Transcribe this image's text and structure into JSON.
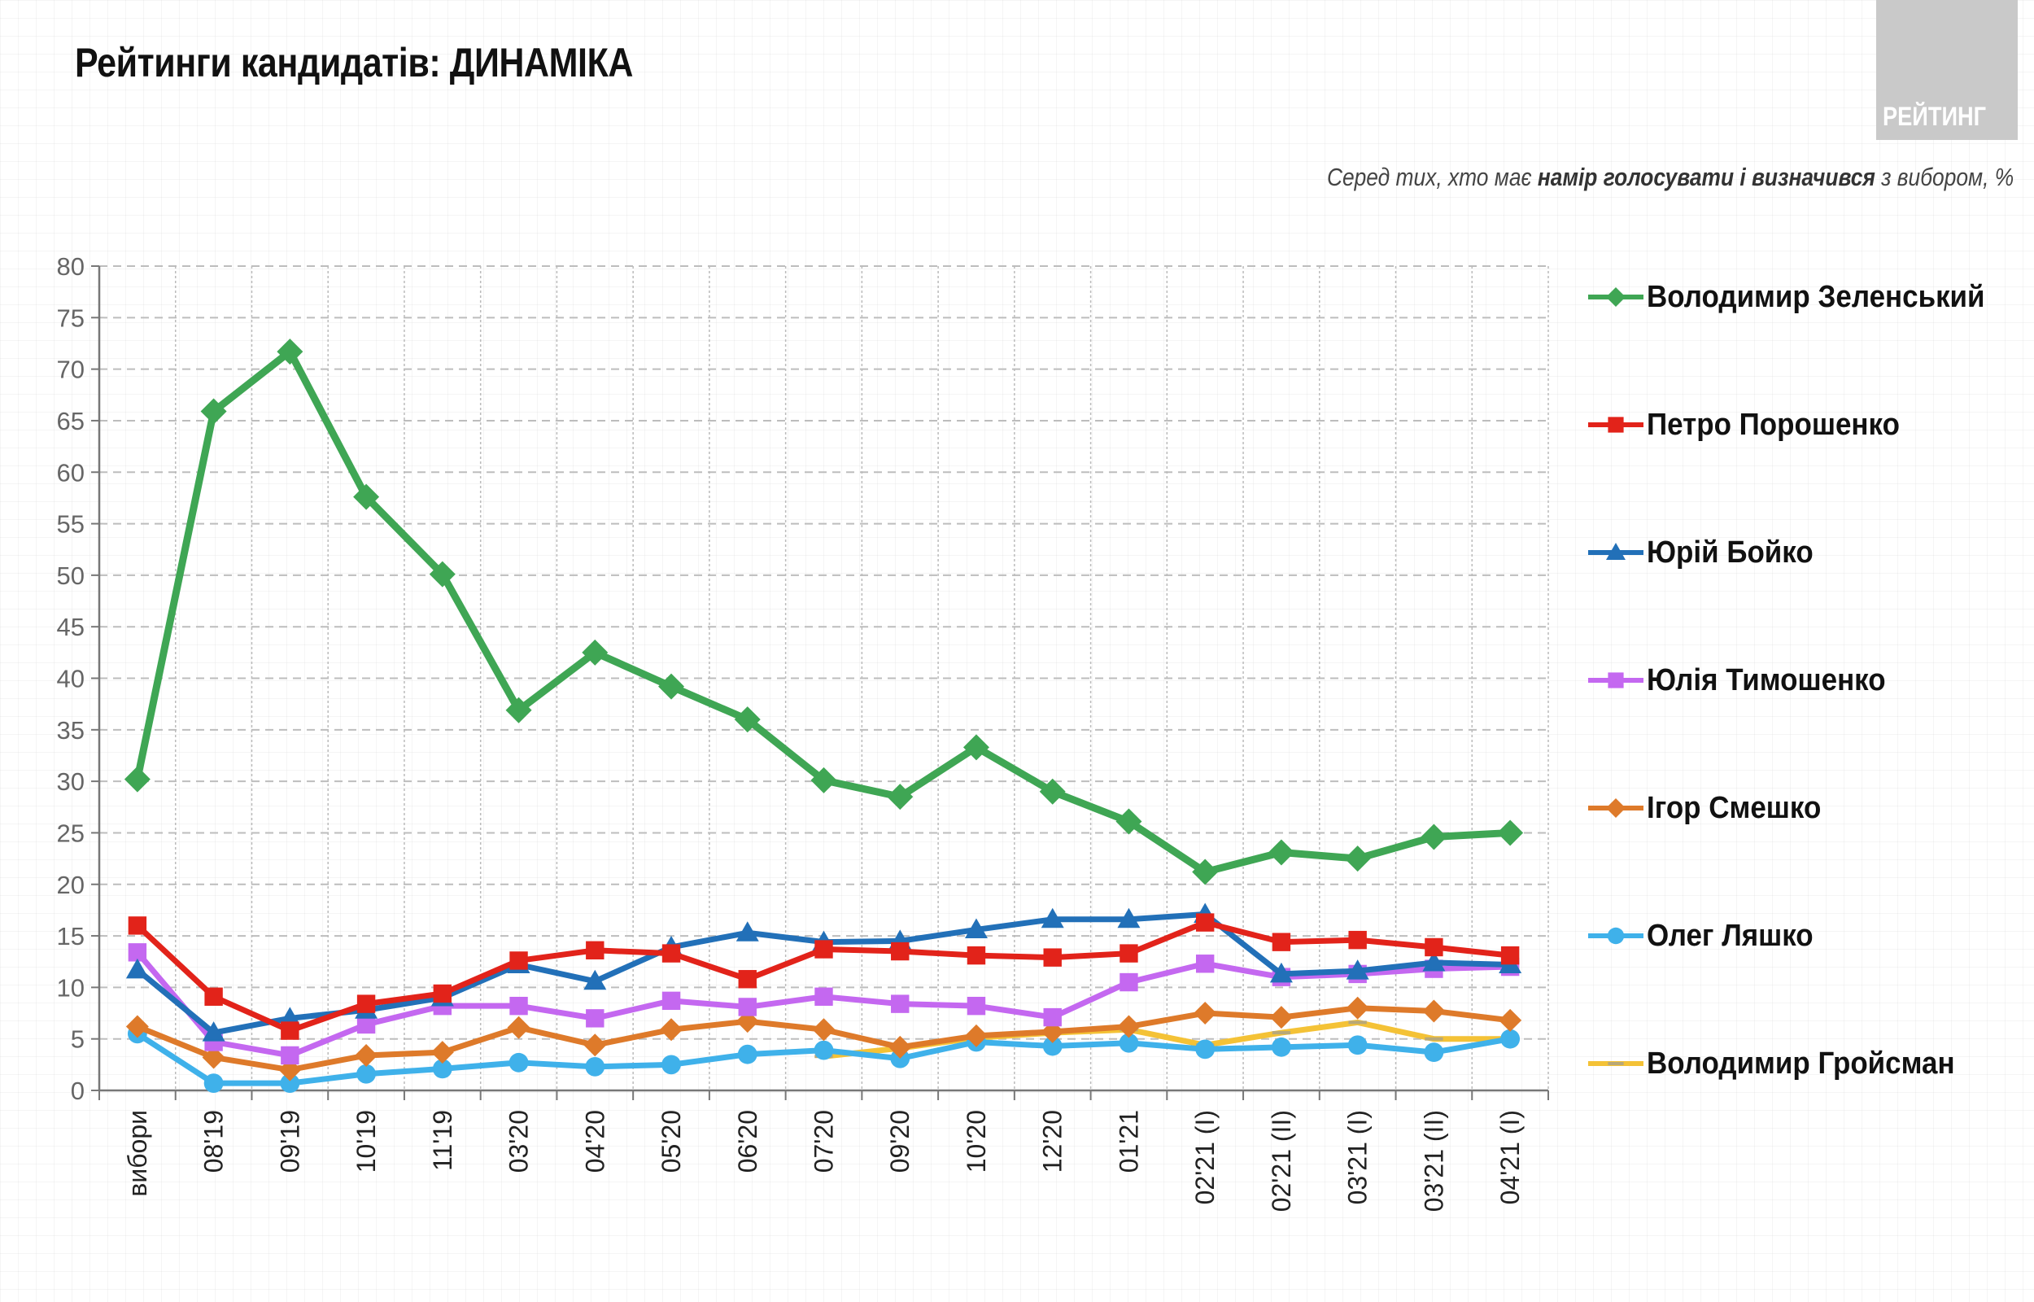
{
  "header": {
    "title": "Рейтинги кандидатів: ДИНАМІКА",
    "logo_text": "РЕЙТИНГ",
    "subtitle_pre": "Серед тих, хто має ",
    "subtitle_bold": "намір голосувати і визначився",
    "subtitle_post": " з вибором, %"
  },
  "chart_data": {
    "type": "line",
    "title": "Рейтинги кандидатів: ДИНАМІКА",
    "subtitle": "Серед тих, хто має намір голосувати і визначився з вибором, %",
    "xlabel": "",
    "ylabel": "",
    "ylim": [
      0,
      80
    ],
    "yticks": [
      0,
      5,
      10,
      15,
      20,
      25,
      30,
      35,
      40,
      45,
      50,
      55,
      60,
      65,
      70,
      75,
      80
    ],
    "grid": true,
    "legend_position": "right",
    "categories": [
      "вибори",
      "08'19",
      "09'19",
      "10'19",
      "11'19",
      "03'20",
      "04'20",
      "05'20",
      "06'20",
      "07'20",
      "09'20",
      "10'20",
      "12'20",
      "01'21",
      "02'21 (I)",
      "02'21 (II)",
      "03'21 (I)",
      "03'21 (II)",
      "04'21 (I)"
    ],
    "series": [
      {
        "name": "Володимир Зеленський",
        "color": "#3fa654",
        "marker": "diamond",
        "values": [
          30.2,
          65.9,
          71.7,
          57.6,
          50.1,
          36.9,
          42.5,
          39.2,
          36.0,
          30.1,
          28.5,
          33.3,
          29.0,
          26.1,
          21.2,
          23.1,
          22.5,
          24.6,
          25.0
        ]
      },
      {
        "name": "Петро Порошенко",
        "color": "#e2231a",
        "marker": "square",
        "values": [
          16.0,
          9.1,
          5.8,
          8.4,
          9.4,
          12.6,
          13.6,
          13.3,
          10.8,
          13.7,
          13.5,
          13.1,
          12.9,
          13.3,
          16.3,
          14.4,
          14.6,
          13.9,
          13.1
        ]
      },
      {
        "name": "Юрій Бойко",
        "color": "#2270b8",
        "marker": "triangle",
        "values": [
          11.7,
          5.6,
          7.0,
          7.8,
          9.0,
          12.2,
          10.6,
          13.9,
          15.3,
          14.4,
          14.5,
          15.6,
          16.6,
          16.6,
          17.1,
          11.3,
          11.6,
          12.4,
          12.2
        ]
      },
      {
        "name": "Юлія Тимошенко",
        "color": "#c468f0",
        "marker": "square",
        "values": [
          13.4,
          4.7,
          3.4,
          6.4,
          8.2,
          8.2,
          7.0,
          8.7,
          8.1,
          9.1,
          8.4,
          8.2,
          7.1,
          10.5,
          12.3,
          11.0,
          11.3,
          11.8,
          12.0
        ]
      },
      {
        "name": "Ігор Смешко",
        "color": "#de7a2a",
        "marker": "diamond",
        "values": [
          6.2,
          3.2,
          2.0,
          3.4,
          3.7,
          6.1,
          4.4,
          5.9,
          6.7,
          5.9,
          4.2,
          5.3,
          5.7,
          6.2,
          7.5,
          7.1,
          8.0,
          7.7,
          6.8
        ]
      },
      {
        "name": "Олег Ляшко",
        "color": "#3fb1ea",
        "marker": "circle",
        "values": [
          5.5,
          0.7,
          0.7,
          1.6,
          2.1,
          2.7,
          2.3,
          2.5,
          3.5,
          3.9,
          3.1,
          4.7,
          4.3,
          4.6,
          4.0,
          4.2,
          4.4,
          3.7,
          5.0
        ]
      },
      {
        "name": "Володимир Гройсман",
        "color": "#f4c236",
        "marker": "dash",
        "values": [
          null,
          null,
          null,
          null,
          null,
          null,
          null,
          null,
          null,
          3.3,
          4.1,
          5.1,
          5.6,
          5.9,
          4.4,
          5.6,
          6.6,
          5.0,
          5.0
        ]
      }
    ]
  }
}
